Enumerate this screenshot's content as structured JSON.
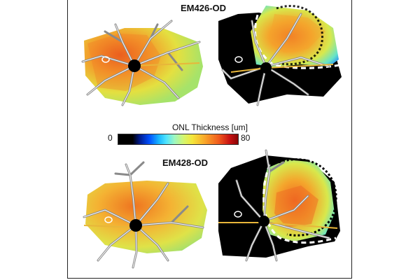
{
  "figure": {
    "panels": [
      {
        "label": "EM426-OD"
      },
      {
        "label": "EM428-OD"
      }
    ],
    "colorbar": {
      "title": "ONL Thickness [um]",
      "min_label": "0",
      "max_label": "80"
    }
  },
  "colors": {
    "vessel": "#8a8a8a",
    "vessel_highlight": "#ffffff",
    "optic_disc": "#000000",
    "horizontal_line": "#e8b63a",
    "outline_dotted": "#000000"
  }
}
